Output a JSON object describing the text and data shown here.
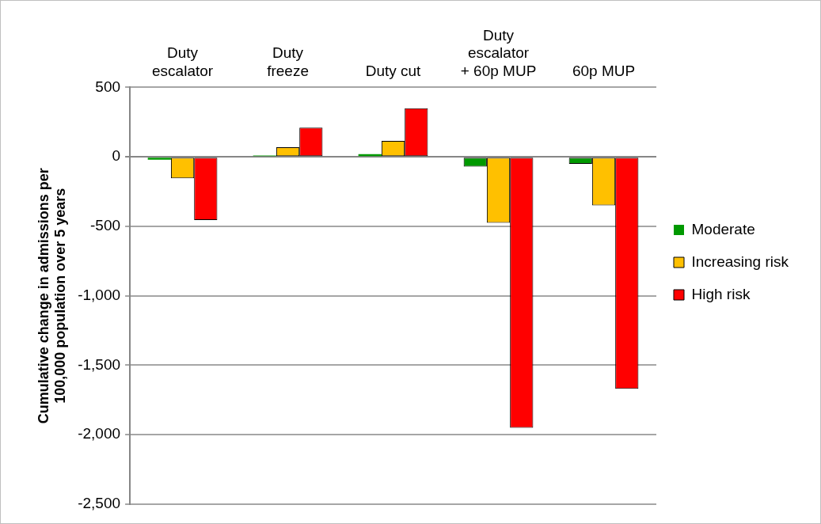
{
  "chart_data": {
    "type": "bar",
    "ylabel": "Cumulative change in admissions per 100,000 population over 5 years",
    "categories": [
      "Duty escalator",
      "Duty freeze",
      "Duty cut",
      "Duty escalator + 60p MUP",
      "60p MUP"
    ],
    "series": [
      {
        "name": "Moderate",
        "color": "#009900",
        "values": [
          -20,
          10,
          20,
          -70,
          -50
        ]
      },
      {
        "name": "Increasing risk",
        "color": "#ffc000",
        "values": [
          -155,
          70,
          115,
          -475,
          -350
        ]
      },
      {
        "name": "High risk",
        "color": "#ff0000",
        "values": [
          -455,
          210,
          350,
          -1950,
          -1670
        ]
      }
    ],
    "ylim": [
      -2500,
      500
    ],
    "yticks": [
      500,
      0,
      -500,
      {
        "value": -1000,
        "label": "-1,000"
      },
      {
        "value": -1500,
        "label": "-1,500"
      },
      {
        "value": -2000,
        "label": "-2,000"
      },
      {
        "value": -2500,
        "label": "-2,500"
      }
    ],
    "grid": "y",
    "legend": "right"
  }
}
